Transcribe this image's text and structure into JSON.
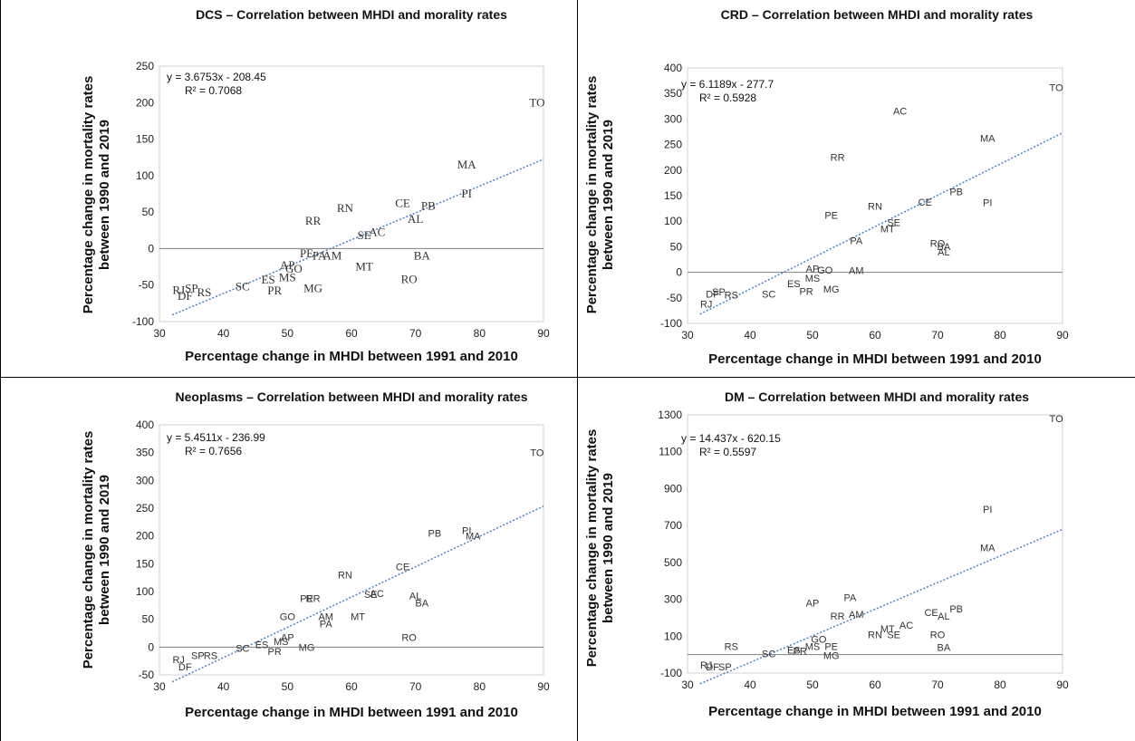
{
  "chart_data": [
    {
      "type": "scatter",
      "title": "DCS – Correlation between MHDI and morality rates",
      "xlabel": "Percentage change in MHDI between 1991 and 2010",
      "ylabel": [
        "Percentage change in mortality rates",
        "between 1990 and 2019"
      ],
      "xlim": [
        30,
        90
      ],
      "ylim": [
        -100,
        250
      ],
      "xticks": [
        30,
        40,
        50,
        60,
        70,
        80,
        90
      ],
      "yticks": [
        -100,
        -50,
        0,
        50,
        100,
        150,
        200,
        250
      ],
      "trendline": {
        "slope": 3.6753,
        "intercept": -208.45
      },
      "equation": "y = 3.6753x - 208.45",
      "r2": "R² = 0.7068",
      "label_font": "serif",
      "points": [
        {
          "label": "TO",
          "x": 89,
          "y": 200
        },
        {
          "label": "MA",
          "x": 78,
          "y": 115
        },
        {
          "label": "PI",
          "x": 78,
          "y": 75
        },
        {
          "label": "PB",
          "x": 72,
          "y": 58
        },
        {
          "label": "CE",
          "x": 68,
          "y": 62
        },
        {
          "label": "AL",
          "x": 70,
          "y": 40
        },
        {
          "label": "RN",
          "x": 59,
          "y": 55
        },
        {
          "label": "RR",
          "x": 54,
          "y": 38
        },
        {
          "label": "SE",
          "x": 62,
          "y": 18
        },
        {
          "label": "AC",
          "x": 64,
          "y": 22
        },
        {
          "label": "BA",
          "x": 71,
          "y": -10
        },
        {
          "label": "PE",
          "x": 53,
          "y": -7
        },
        {
          "label": "PA",
          "x": 55,
          "y": -10
        },
        {
          "label": "AM",
          "x": 57,
          "y": -10
        },
        {
          "label": "MT",
          "x": 62,
          "y": -25
        },
        {
          "label": "RO",
          "x": 69,
          "y": -42
        },
        {
          "label": "AP",
          "x": 50,
          "y": -23
        },
        {
          "label": "GO",
          "x": 51,
          "y": -28
        },
        {
          "label": "ES",
          "x": 47,
          "y": -43
        },
        {
          "label": "MS",
          "x": 50,
          "y": -40
        },
        {
          "label": "MG",
          "x": 54,
          "y": -55
        },
        {
          "label": "PR",
          "x": 48,
          "y": -58
        },
        {
          "label": "SC",
          "x": 43,
          "y": -52
        },
        {
          "label": "RJ",
          "x": 33,
          "y": -57
        },
        {
          "label": "SP",
          "x": 35,
          "y": -55
        },
        {
          "label": "RS",
          "x": 37,
          "y": -60
        },
        {
          "label": "DF",
          "x": 34,
          "y": -65
        }
      ]
    },
    {
      "type": "scatter",
      "title": "CRD – Correlation between MHDI and morality rates",
      "xlabel": "Percentage change in MHDI between 1991 and 2010",
      "ylabel": [
        "Percentage change in mortality rates",
        "between 1990 and 2019"
      ],
      "xlim": [
        30,
        90
      ],
      "ylim": [
        -100,
        400
      ],
      "xticks": [
        30,
        40,
        50,
        60,
        70,
        80,
        90
      ],
      "yticks": [
        -100,
        -50,
        0,
        50,
        100,
        150,
        200,
        250,
        300,
        350,
        400
      ],
      "trendline": {
        "slope": 6.1189,
        "intercept": -277.7
      },
      "equation": "y = 6.1189x - 277.7",
      "r2": "R² = 0.5928",
      "label_font": "sans",
      "points": [
        {
          "label": "TO",
          "x": 89,
          "y": 362
        },
        {
          "label": "AC",
          "x": 64,
          "y": 316
        },
        {
          "label": "MA",
          "x": 78,
          "y": 263
        },
        {
          "label": "RR",
          "x": 54,
          "y": 225
        },
        {
          "label": "PB",
          "x": 73,
          "y": 158
        },
        {
          "label": "PI",
          "x": 78,
          "y": 137
        },
        {
          "label": "CE",
          "x": 68,
          "y": 138
        },
        {
          "label": "RN",
          "x": 60,
          "y": 130
        },
        {
          "label": "PE",
          "x": 53,
          "y": 112
        },
        {
          "label": "SE",
          "x": 63,
          "y": 98
        },
        {
          "label": "MT",
          "x": 62,
          "y": 85
        },
        {
          "label": "PA",
          "x": 57,
          "y": 62
        },
        {
          "label": "RO",
          "x": 70,
          "y": 57
        },
        {
          "label": "BA",
          "x": 71,
          "y": 51
        },
        {
          "label": "AL",
          "x": 71,
          "y": 40
        },
        {
          "label": "AP",
          "x": 50,
          "y": 7
        },
        {
          "label": "GO",
          "x": 52,
          "y": 5
        },
        {
          "label": "AM",
          "x": 57,
          "y": 4
        },
        {
          "label": "MS",
          "x": 50,
          "y": -11
        },
        {
          "label": "ES",
          "x": 47,
          "y": -22
        },
        {
          "label": "PR",
          "x": 49,
          "y": -37
        },
        {
          "label": "MG",
          "x": 53,
          "y": -33
        },
        {
          "label": "SC",
          "x": 43,
          "y": -42
        },
        {
          "label": "SP",
          "x": 35,
          "y": -38
        },
        {
          "label": "DF",
          "x": 34,
          "y": -42
        },
        {
          "label": "RS",
          "x": 37,
          "y": -44
        },
        {
          "label": "RJ",
          "x": 33,
          "y": -62
        }
      ]
    },
    {
      "type": "scatter",
      "title": "Neoplasms – Correlation between MHDI and morality rates",
      "xlabel": "Percentage change in MHDI between 1991 and 2010",
      "ylabel": [
        "Percentage change in mortality rates",
        "between 1990 and 2019"
      ],
      "xlim": [
        30,
        90
      ],
      "ylim": [
        -50,
        400
      ],
      "xticks": [
        30,
        40,
        50,
        60,
        70,
        80,
        90
      ],
      "yticks": [
        -50,
        0,
        50,
        100,
        150,
        200,
        250,
        300,
        350,
        400
      ],
      "trendline": {
        "slope": 5.4511,
        "intercept": -236.99
      },
      "equation": "y = 5.4511x - 236.99",
      "r2": "R² = 0.7656",
      "label_font": "sans",
      "points": [
        {
          "label": "TO",
          "x": 89,
          "y": 350
        },
        {
          "label": "PB",
          "x": 73,
          "y": 205
        },
        {
          "label": "PI",
          "x": 78,
          "y": 210
        },
        {
          "label": "MA",
          "x": 79,
          "y": 200
        },
        {
          "label": "CE",
          "x": 68,
          "y": 145
        },
        {
          "label": "RN",
          "x": 59,
          "y": 130
        },
        {
          "label": "AL",
          "x": 70,
          "y": 93
        },
        {
          "label": "BA",
          "x": 71,
          "y": 80
        },
        {
          "label": "SE",
          "x": 63,
          "y": 95
        },
        {
          "label": "AC",
          "x": 64,
          "y": 97
        },
        {
          "label": "PE",
          "x": 53,
          "y": 88
        },
        {
          "label": "RR",
          "x": 54,
          "y": 88
        },
        {
          "label": "GO",
          "x": 50,
          "y": 55
        },
        {
          "label": "AM",
          "x": 56,
          "y": 55
        },
        {
          "label": "PA",
          "x": 56,
          "y": 42
        },
        {
          "label": "MT",
          "x": 61,
          "y": 55
        },
        {
          "label": "RO",
          "x": 69,
          "y": 18
        },
        {
          "label": "AP",
          "x": 50,
          "y": 18
        },
        {
          "label": "MS",
          "x": 49,
          "y": 10
        },
        {
          "label": "ES",
          "x": 46,
          "y": 5
        },
        {
          "label": "MG",
          "x": 53,
          "y": 0
        },
        {
          "label": "PR",
          "x": 48,
          "y": -8
        },
        {
          "label": "SC",
          "x": 43,
          "y": -2
        },
        {
          "label": "SP",
          "x": 36,
          "y": -15
        },
        {
          "label": "RS",
          "x": 38,
          "y": -15
        },
        {
          "label": "RJ",
          "x": 33,
          "y": -22
        },
        {
          "label": "DF",
          "x": 34,
          "y": -35
        }
      ]
    },
    {
      "type": "scatter",
      "title": "DM – Correlation between MHDI and morality rates",
      "xlabel": "Percentage change in MHDI between 1991 and 2010",
      "ylabel": [
        "Percentage change in mortality rates",
        "between 1990 and 2019"
      ],
      "xlim": [
        30,
        90
      ],
      "ylim": [
        -100,
        1300
      ],
      "xticks": [
        30,
        40,
        50,
        60,
        70,
        80,
        90
      ],
      "yticks": [
        -100,
        100,
        300,
        500,
        700,
        900,
        1100,
        1300
      ],
      "trendline": {
        "slope": 14.437,
        "intercept": -620.15
      },
      "equation": "y = 14.437x - 620.15",
      "r2": "R² = 0.5597",
      "label_font": "sans",
      "points": [
        {
          "label": "TO",
          "x": 89,
          "y": 1280
        },
        {
          "label": "PI",
          "x": 78,
          "y": 790
        },
        {
          "label": "MA",
          "x": 78,
          "y": 580
        },
        {
          "label": "AP",
          "x": 50,
          "y": 280
        },
        {
          "label": "PA",
          "x": 56,
          "y": 310
        },
        {
          "label": "PB",
          "x": 73,
          "y": 250
        },
        {
          "label": "CE",
          "x": 69,
          "y": 230
        },
        {
          "label": "AL",
          "x": 71,
          "y": 210
        },
        {
          "label": "RR",
          "x": 54,
          "y": 210
        },
        {
          "label": "AM",
          "x": 57,
          "y": 220
        },
        {
          "label": "AC",
          "x": 65,
          "y": 160
        },
        {
          "label": "MT",
          "x": 62,
          "y": 140
        },
        {
          "label": "RN",
          "x": 60,
          "y": 110
        },
        {
          "label": "SE",
          "x": 63,
          "y": 110
        },
        {
          "label": "RO",
          "x": 70,
          "y": 110
        },
        {
          "label": "GO",
          "x": 51,
          "y": 85
        },
        {
          "label": "MS",
          "x": 50,
          "y": 45
        },
        {
          "label": "PE",
          "x": 53,
          "y": 45
        },
        {
          "label": "ES",
          "x": 47,
          "y": 25
        },
        {
          "label": "PR",
          "x": 48,
          "y": 20
        },
        {
          "label": "MG",
          "x": 53,
          "y": -5
        },
        {
          "label": "BA",
          "x": 71,
          "y": 40
        },
        {
          "label": "RS",
          "x": 37,
          "y": 45
        },
        {
          "label": "SC",
          "x": 43,
          "y": 5
        },
        {
          "label": "RJ",
          "x": 33,
          "y": -55
        },
        {
          "label": "DF",
          "x": 34,
          "y": -65
        },
        {
          "label": "SP",
          "x": 36,
          "y": -65
        }
      ]
    }
  ],
  "colors": {
    "trendline": "#4f81bd",
    "zero_line": "#7f7f7f",
    "plot_border": "#d0d0d0",
    "text": "#111111",
    "divider": "#000000"
  }
}
